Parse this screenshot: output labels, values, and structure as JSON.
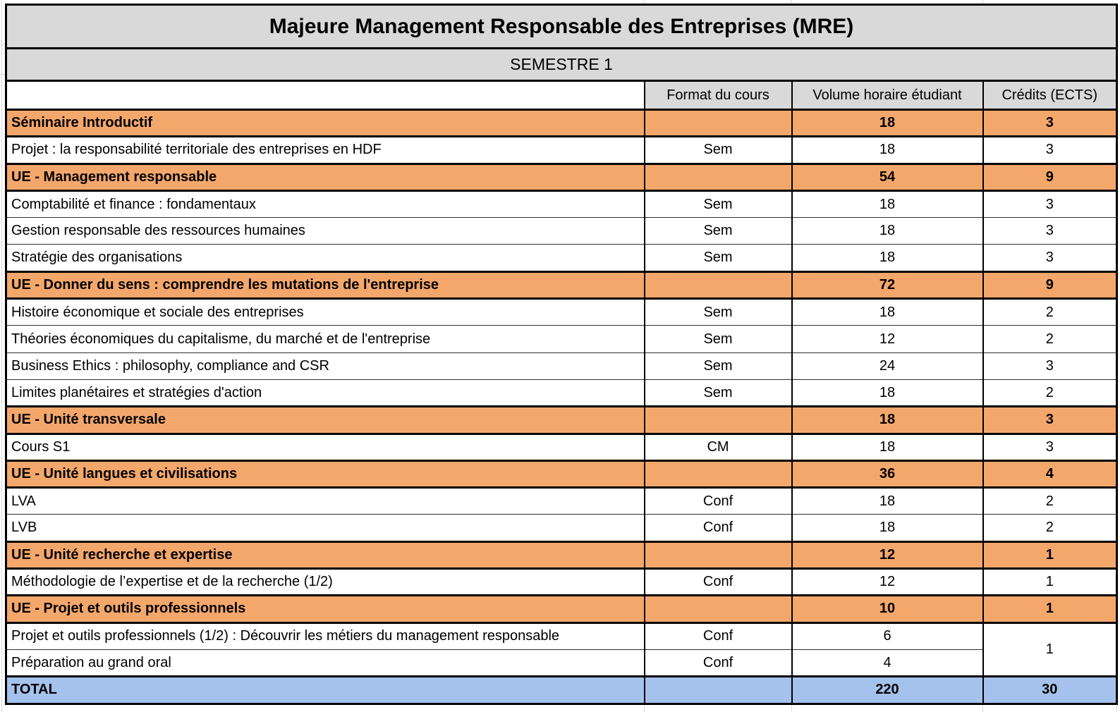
{
  "header": {
    "title": "Majeure Management Responsable des Entreprises (MRE)",
    "semester": "SEMESTRE 1"
  },
  "columns": {
    "course": "",
    "format": "Format du cours",
    "volume": "Volume horaire étudiant",
    "credits": "Crédits (ECTS)"
  },
  "colors": {
    "section_bg": "#F4A76B",
    "total_bg": "#A4C2EC",
    "header_bg": "#D9D9D9"
  },
  "rows": [
    {
      "type": "section",
      "label": "Séminaire Introductif",
      "format": "",
      "volume": "18",
      "credits": "3"
    },
    {
      "type": "course",
      "label": "Projet : la responsabilité territoriale des entreprises en HDF",
      "format": "Sem",
      "volume": "18",
      "credits": "3"
    },
    {
      "type": "section",
      "label": "UE - Management responsable",
      "format": "",
      "volume": "54",
      "credits": "9"
    },
    {
      "type": "course",
      "label": "Comptabilité et finance : fondamentaux",
      "format": "Sem",
      "volume": "18",
      "credits": "3"
    },
    {
      "type": "course",
      "label": "Gestion responsable des ressources humaines",
      "format": "Sem",
      "volume": "18",
      "credits": "3"
    },
    {
      "type": "course",
      "label": "Stratégie des organisations",
      "format": "Sem",
      "volume": "18",
      "credits": "3"
    },
    {
      "type": "section",
      "label": "UE - Donner du sens : comprendre les mutations de l'entreprise",
      "format": "",
      "volume": "72",
      "credits": "9"
    },
    {
      "type": "course",
      "label": "Histoire économique et sociale des entreprises",
      "format": "Sem",
      "volume": "18",
      "credits": "2"
    },
    {
      "type": "course",
      "label": "Théories économiques du capitalisme, du marché et de l'entreprise",
      "format": "Sem",
      "volume": "12",
      "credits": "2"
    },
    {
      "type": "course",
      "label": "Business Ethics : philosophy, compliance and CSR",
      "format": "Sem",
      "volume": "24",
      "credits": "3"
    },
    {
      "type": "course",
      "label": "Limites planétaires et stratégies d'action",
      "format": "Sem",
      "volume": "18",
      "credits": "2"
    },
    {
      "type": "section",
      "label": "UE - Unité transversale",
      "format": "",
      "volume": "18",
      "credits": "3"
    },
    {
      "type": "course",
      "label": "Cours S1",
      "format": "CM",
      "volume": "18",
      "credits": "3"
    },
    {
      "type": "section",
      "label": "UE - Unité langues et civilisations",
      "format": "",
      "volume": "36",
      "credits": "4"
    },
    {
      "type": "course",
      "label": "LVA",
      "format": "Conf",
      "volume": "18",
      "credits": "2"
    },
    {
      "type": "course",
      "label": "LVB",
      "format": "Conf",
      "volume": "18",
      "credits": "2"
    },
    {
      "type": "section",
      "label": "UE - Unité recherche et expertise",
      "format": "",
      "volume": "12",
      "credits": "1"
    },
    {
      "type": "course",
      "label": "Méthodologie de l’expertise et de la recherche (1/2)",
      "format": "Conf",
      "volume": "12",
      "credits": "1"
    },
    {
      "type": "section",
      "label": "UE - Projet et outils professionnels",
      "format": "",
      "volume": "10",
      "credits": "1"
    },
    {
      "type": "course",
      "label": "Projet et outils professionnels (1/2) : Découvrir les métiers du management responsable",
      "format": "Conf",
      "volume": "6",
      "credits": "1",
      "credits_rowspan": 2
    },
    {
      "type": "course",
      "label": "Préparation au grand oral",
      "format": "Conf",
      "volume": "4",
      "credits": null
    },
    {
      "type": "total",
      "label": "TOTAL",
      "format": "",
      "volume": "220",
      "credits": "30"
    }
  ]
}
